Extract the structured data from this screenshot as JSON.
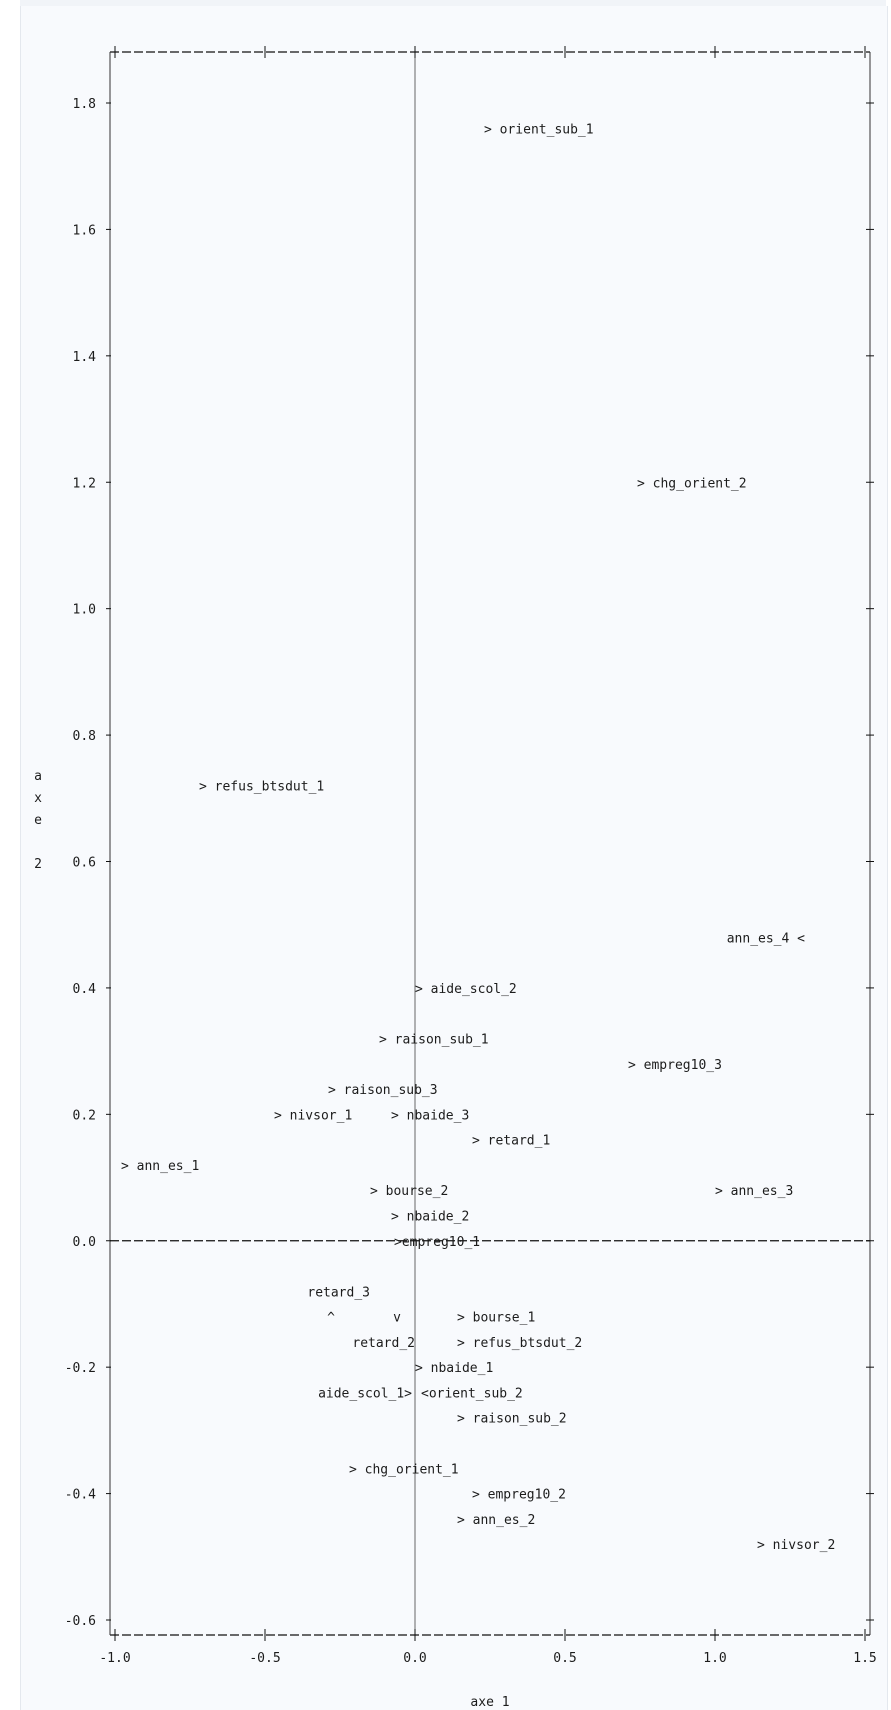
{
  "chart_data": {
    "type": "scatter",
    "xlabel": "axe 1",
    "ylabel": "axe 2",
    "xlim": [
      -1.0,
      1.5
    ],
    "ylim": [
      -0.6,
      1.8
    ],
    "grid": false,
    "x_ticks": [
      "-1.0",
      "-0.5",
      "0.0",
      "0.5",
      "1.0",
      "1.5"
    ],
    "x_tick_values": [
      -1.0,
      -0.5,
      0.0,
      0.5,
      1.0,
      1.5
    ],
    "y_ticks": [
      "-0.6",
      "-0.4",
      "-0.2",
      "0.0",
      "0.2",
      "0.4",
      "0.6",
      "0.8",
      "1.0",
      "1.2",
      "1.4",
      "1.6",
      "1.8"
    ],
    "y_tick_values": [
      -0.6,
      -0.4,
      -0.2,
      0.0,
      0.2,
      0.4,
      0.6,
      0.8,
      1.0,
      1.2,
      1.4,
      1.6,
      1.8
    ],
    "points": [
      {
        "label": "orient_sub_1",
        "x": 0.23,
        "y": 1.76
      },
      {
        "label": "chg_orient_2",
        "x": 0.74,
        "y": 1.2
      },
      {
        "label": "refus_btsdut_1",
        "x": -0.72,
        "y": 0.72
      },
      {
        "label": "ann_es_4",
        "x": 1.3,
        "y": 0.48
      },
      {
        "label": "aide_scol_2",
        "x": 0.0,
        "y": 0.4
      },
      {
        "label": "raison_sub_1",
        "x": -0.12,
        "y": 0.32
      },
      {
        "label": "empreg10_3",
        "x": 0.71,
        "y": 0.28
      },
      {
        "label": "raison_sub_3",
        "x": -0.29,
        "y": 0.24
      },
      {
        "label": "nivsor_1",
        "x": -0.47,
        "y": 0.2
      },
      {
        "label": "nbaide_3",
        "x": -0.08,
        "y": 0.2
      },
      {
        "label": "retard_1",
        "x": 0.19,
        "y": 0.16
      },
      {
        "label": "ann_es_1",
        "x": -0.98,
        "y": 0.12
      },
      {
        "label": "bourse_2",
        "x": -0.15,
        "y": 0.08
      },
      {
        "label": "ann_es_3",
        "x": 1.0,
        "y": 0.08
      },
      {
        "label": "nbaide_2",
        "x": -0.08,
        "y": 0.04
      },
      {
        "label": "empreg10_1",
        "x": -0.07,
        "y": 0.0
      },
      {
        "label": "retard_3",
        "x": -0.15,
        "y": -0.08
      },
      {
        "label": "bourse_1",
        "x": 0.14,
        "y": -0.12
      },
      {
        "label": "retard_2",
        "x": 0.0,
        "y": -0.16
      },
      {
        "label": "refus_btsdut_2",
        "x": 0.14,
        "y": -0.16
      },
      {
        "label": "nbaide_1",
        "x": 0.0,
        "y": -0.2
      },
      {
        "label": "aide_scol_1",
        "x": -0.01,
        "y": -0.24
      },
      {
        "label": "orient_sub_2",
        "x": 0.02,
        "y": -0.24
      },
      {
        "label": "raison_sub_2",
        "x": 0.14,
        "y": -0.28
      },
      {
        "label": "chg_orient_1",
        "x": -0.22,
        "y": -0.36
      },
      {
        "label": "empreg10_2",
        "x": 0.19,
        "y": -0.4
      },
      {
        "label": "ann_es_2",
        "x": 0.14,
        "y": -0.44
      },
      {
        "label": "nivsor_2",
        "x": 1.14,
        "y": -0.48
      }
    ]
  },
  "marker_glyphs": [
    {
      "char": "^",
      "x": -0.28,
      "y": -0.12
    },
    {
      "char": "v",
      "x": -0.06,
      "y": -0.12
    }
  ]
}
